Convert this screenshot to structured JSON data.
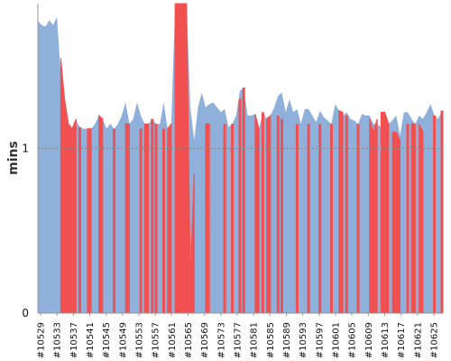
{
  "chart_data": {
    "type": "area",
    "title": "",
    "xlabel": "",
    "ylabel": "mins",
    "ylim": [
      0,
      1.88
    ],
    "yticks": [
      0,
      1
    ],
    "reference_line": 1,
    "colors": {
      "baseline": "#8fb0da",
      "current": "#f05050",
      "reference": "#888888"
    },
    "x_tick_labels": [
      "#10529",
      "#10533",
      "#10537",
      "#10541",
      "#10545",
      "#10549",
      "#10553",
      "#10557",
      "#10561",
      "#10565",
      "#10569",
      "#10573",
      "#10577",
      "#10581",
      "#10585",
      "#10589",
      "#10593",
      "#10597",
      "#10601",
      "#10605",
      "#10609",
      "#10613",
      "#10617",
      "#10621",
      "#10625"
    ],
    "series": [
      {
        "name": "",
        "color": "#8fb0da",
        "values": [
          1.78,
          1.75,
          1.74,
          1.78,
          1.75,
          1.8,
          1.45,
          1.25,
          1.15,
          1.12,
          1.17,
          1.13,
          1.12,
          1.12,
          1.12,
          1.15,
          1.2,
          1.18,
          1.12,
          1.15,
          1.12,
          1.15,
          1.2,
          1.28,
          1.15,
          1.18,
          1.28,
          1.2,
          1.15,
          1.15,
          1.18,
          1.15,
          1.15,
          1.28,
          1.12,
          1.15,
          1.9,
          1.9,
          1.9,
          1.9,
          1.25,
          1.05,
          1.25,
          1.34,
          1.25,
          1.27,
          1.28,
          1.25,
          1.22,
          1.24,
          1.13,
          1.15,
          1.2,
          1.35,
          1.37,
          1.2,
          1.2,
          1.21,
          1.12,
          1.22,
          1.18,
          1.2,
          1.25,
          1.32,
          1.34,
          1.22,
          1.3,
          1.22,
          1.24,
          1.15,
          1.24,
          1.24,
          1.2,
          1.16,
          1.23,
          1.19,
          1.17,
          1.15,
          1.27,
          1.23,
          1.2,
          1.22,
          1.18,
          1.17,
          1.15,
          1.21,
          1.2,
          1.2,
          1.15,
          1.15,
          1.13,
          1.1,
          1.15,
          1.17,
          1.2,
          1.08,
          1.22,
          1.22,
          1.18,
          1.15,
          1.2,
          1.18,
          1.22,
          1.27,
          1.2,
          1.18,
          1.23
        ]
      },
      {
        "name": "",
        "color": "#f05050",
        "values": [
          0,
          0,
          0,
          0,
          0,
          0,
          1.55,
          1.3,
          1.15,
          1.12,
          1.18,
          1.13,
          1.12,
          1.12,
          1.12,
          1.15,
          1.2,
          1.18,
          1.12,
          1.15,
          1.12,
          1.15,
          1.2,
          1.15,
          1.15,
          1.18,
          1.15,
          1.12,
          1.15,
          1.15,
          1.18,
          1.15,
          1.15,
          1.12,
          1.12,
          1.15,
          1.9,
          1.9,
          1.9,
          1.9,
          0.2,
          0.85,
          1.2,
          1.15,
          1.15,
          1.15,
          1.15,
          1.15,
          1.15,
          1.15,
          1.12,
          1.15,
          1.2,
          1.3,
          1.37,
          1.2,
          1.2,
          1.21,
          1.12,
          1.22,
          1.18,
          1.2,
          1.23,
          1.2,
          1.18,
          1.15,
          1.15,
          1.15,
          1.15,
          1.15,
          1.15,
          1.15,
          1.15,
          1.18,
          1.15,
          1.17,
          1.15,
          1.15,
          1.2,
          1.23,
          1.22,
          1.2,
          1.17,
          1.15,
          1.15,
          1.2,
          1.22,
          1.18,
          1.1,
          1.18,
          1.22,
          1.22,
          1.15,
          1.1,
          1.1,
          1.05,
          1.15,
          1.15,
          1.15,
          1.15,
          1.15,
          1.1,
          1.25,
          1.27,
          1.2,
          1.18,
          1.23
        ]
      }
    ],
    "red_bands": [
      [
        6,
        10
      ],
      [
        11,
        11
      ],
      [
        13,
        14
      ],
      [
        16,
        17
      ],
      [
        20,
        20
      ],
      [
        23,
        24
      ],
      [
        27,
        27
      ],
      [
        28,
        29
      ],
      [
        30,
        30
      ],
      [
        31,
        31
      ],
      [
        33,
        33
      ],
      [
        34,
        35
      ],
      [
        36,
        41
      ],
      [
        44,
        45
      ],
      [
        49,
        49
      ],
      [
        51,
        51
      ],
      [
        53,
        53
      ],
      [
        54,
        54
      ],
      [
        57,
        58
      ],
      [
        59,
        59
      ],
      [
        60,
        61
      ],
      [
        63,
        63
      ],
      [
        64,
        64
      ],
      [
        68,
        68
      ],
      [
        71,
        71
      ],
      [
        74,
        74
      ],
      [
        77,
        77
      ],
      [
        79,
        80
      ],
      [
        81,
        81
      ],
      [
        84,
        84
      ],
      [
        87,
        89
      ],
      [
        90,
        92
      ],
      [
        93,
        95
      ],
      [
        97,
        97
      ],
      [
        98,
        99
      ],
      [
        100,
        101
      ],
      [
        104,
        104
      ],
      [
        106,
        106
      ]
    ]
  }
}
